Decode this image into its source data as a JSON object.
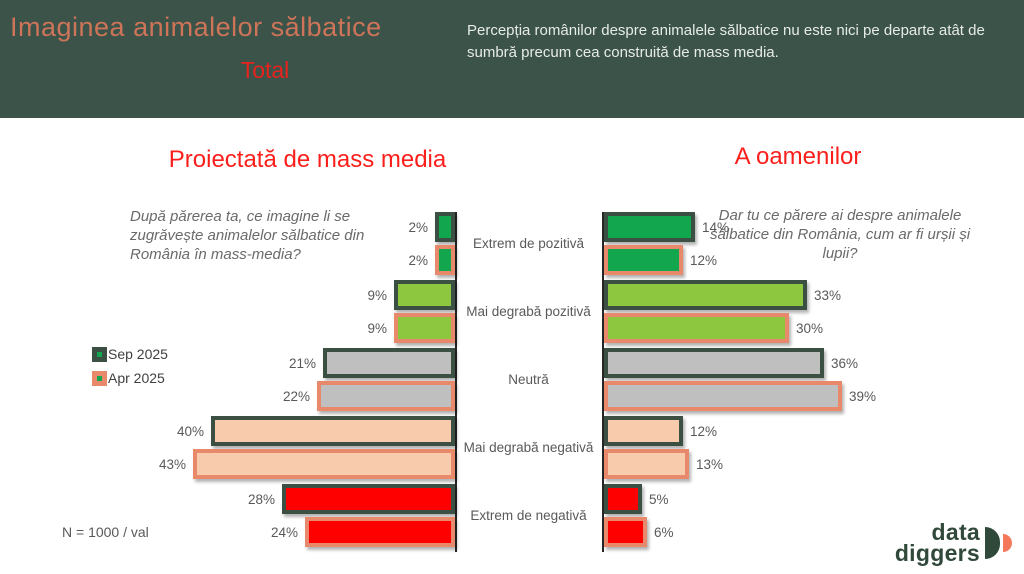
{
  "header": {
    "title": "Imaginea animalelor sălbatice",
    "tab_label": "Total",
    "description": "Percepția românilor despre animalele sălbatice nu este nici pe departe atât de sumbră precum cea construită de mass media."
  },
  "panels": {
    "left": {
      "title": "Proiectată de mass media",
      "question": "După părerea ta, ce imagine li se zugrăvește animalelor sălbatice din România în mass-media?"
    },
    "right": {
      "title": "A oamenilor",
      "question": "Dar tu ce părere ai despre animalele sălbatice din România, cum ar fi urșii și lupii?"
    }
  },
  "legend": {
    "items": [
      {
        "label": "Sep 2025",
        "border_color": "#3c4f43"
      },
      {
        "label": "Apr 2025",
        "border_color": "#e8896c"
      }
    ]
  },
  "footnote": "N = 1000 / val",
  "logo": {
    "line1": "data",
    "line2": "diggers"
  },
  "colors": {
    "header_bg": "#3b5349",
    "header_title": "#cd7459",
    "accent_red": "#fb1f1c",
    "sep_border": "#3c4f43",
    "apr_border": "#e8896c",
    "axis": "#262626",
    "category_fills": [
      "#12a64e",
      "#8dc63f",
      "#bfbfbf",
      "#f8cbad",
      "#fe0000"
    ],
    "logo_green": "#31493b",
    "logo_salmon": "#f4795b"
  },
  "chart_data": [
    {
      "type": "bar",
      "orientation": "horizontal",
      "direction": "left",
      "title": "Proiectată de mass media",
      "unit": "%",
      "categories": [
        "Extrem de pozitivă",
        "Mai degrabă pozitivă",
        "Neutră",
        "Mai degrabă negativă",
        "Extrem de negativă"
      ],
      "series": [
        {
          "name": "Sep 2025",
          "values": [
            2,
            9,
            21,
            40,
            28
          ]
        },
        {
          "name": "Apr 2025",
          "values": [
            2,
            9,
            22,
            43,
            24
          ]
        }
      ],
      "value_labels": "outside-left",
      "xlim": [
        0,
        50
      ]
    },
    {
      "type": "bar",
      "orientation": "horizontal",
      "direction": "right",
      "title": "A oamenilor",
      "unit": "%",
      "categories": [
        "Extrem de pozitivă",
        "Mai degrabă pozitivă",
        "Neutră",
        "Mai degrabă negativă",
        "Extrem de negativă"
      ],
      "series": [
        {
          "name": "Sep 2025",
          "values": [
            14,
            33,
            36,
            12,
            5
          ]
        },
        {
          "name": "Apr 2025",
          "values": [
            12,
            30,
            39,
            13,
            6
          ]
        }
      ],
      "value_labels": "outside-right",
      "xlim": [
        0,
        50
      ]
    }
  ]
}
